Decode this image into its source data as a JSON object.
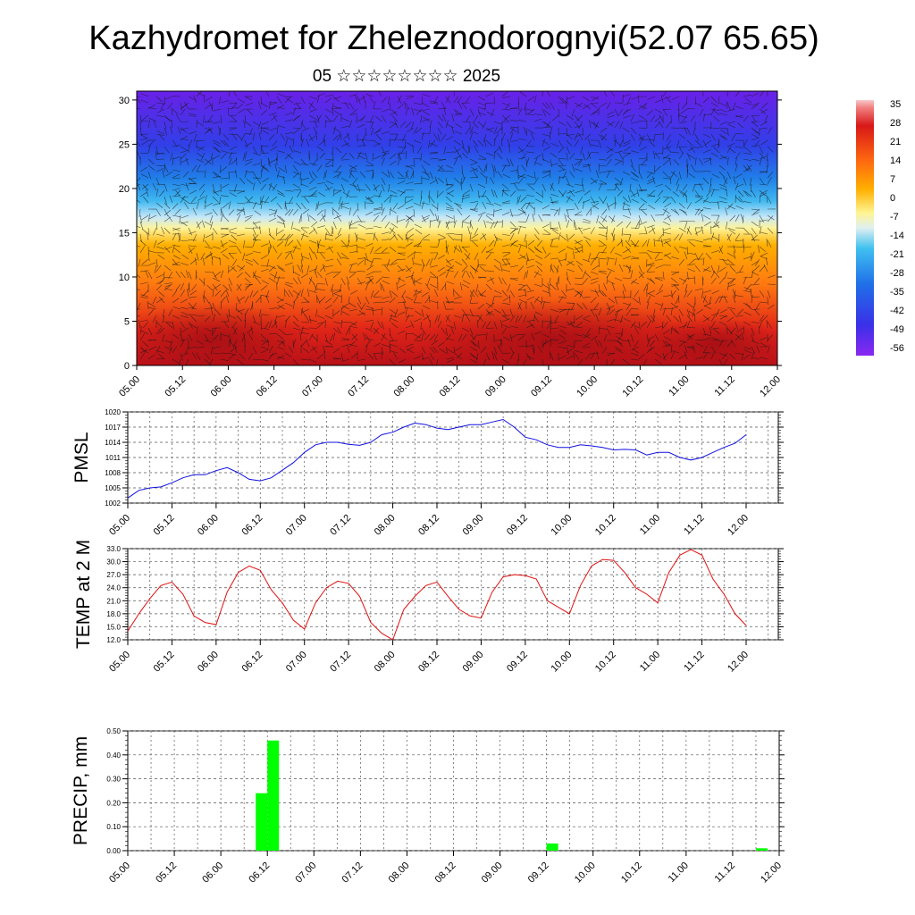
{
  "title": "Kazhydromet for Zheleznodorognyi(52.07 65.65)",
  "subtitle": "05 ☆☆☆☆☆☆☆☆ 2025",
  "colorbar": {
    "labels": [
      "35",
      "28",
      "21",
      "14",
      "7",
      "0",
      "-7",
      "-14",
      "-21",
      "-28",
      "-35",
      "-42",
      "-49",
      "-56"
    ],
    "colors": {
      "hot": "#c8161e",
      "warm": "#ff9c00",
      "neutral": "#fff8a0",
      "cool": "#28a8e8",
      "cold": "#5020e8"
    }
  },
  "chart_data": [
    {
      "type": "heatmap",
      "name": "cross-section",
      "x_tick_labels": [
        "05.00",
        "05.12",
        "06.00",
        "06.12",
        "07.00",
        "07.12",
        "08.00",
        "08.12",
        "09.00",
        "09.12",
        "10.00",
        "10.12",
        "11.00",
        "11.12",
        "12.00"
      ],
      "yticks": [
        0,
        5,
        10,
        15,
        20,
        25,
        30
      ],
      "ylim": [
        0,
        31
      ],
      "value_range": [
        -56,
        35
      ],
      "notes_visible": "temperature shading with wind barbs"
    },
    {
      "type": "line",
      "ylabel": "PMSL",
      "color": "#1010e0",
      "ylim": [
        1002,
        1020
      ],
      "yticks": [
        "1002",
        "1005",
        "1008",
        "1011",
        "1014",
        "1017",
        "1020"
      ],
      "x_tick_labels": [
        "05.00",
        "05.12",
        "06.00",
        "06.12",
        "07.00",
        "07.12",
        "08.00",
        "08.12",
        "09.00",
        "09.12",
        "10.00",
        "10.12",
        "11.00",
        "11.12",
        "12.00"
      ],
      "x_hours_step": 3,
      "values": [
        1003.0,
        1004.5,
        1005.0,
        1005.2,
        1006.0,
        1007.0,
        1007.6,
        1007.6,
        1008.4,
        1009.0,
        1008.0,
        1006.7,
        1006.4,
        1007.0,
        1008.5,
        1010.0,
        1012.0,
        1013.5,
        1014.0,
        1014.0,
        1013.6,
        1013.4,
        1014.0,
        1015.5,
        1016.0,
        1017.0,
        1017.8,
        1017.5,
        1016.8,
        1016.5,
        1017.0,
        1017.5,
        1017.5,
        1018.0,
        1018.5,
        1017.0,
        1015.0,
        1014.5,
        1013.5,
        1013.0,
        1013.0,
        1013.5,
        1013.3,
        1013.0,
        1012.5,
        1012.6,
        1012.5,
        1011.5,
        1012.0,
        1012.0,
        1011.0,
        1010.5,
        1011.0,
        1012.0,
        1013.0,
        1013.8,
        1015.5
      ]
    },
    {
      "type": "line",
      "ylabel": "TEMP at 2 M",
      "color": "#e01010",
      "ylim": [
        12,
        33
      ],
      "yticks": [
        "12.0",
        "15.0",
        "18.0",
        "21.0",
        "24.0",
        "27.0",
        "30.0",
        "33.0"
      ],
      "x_tick_labels": [
        "05.00",
        "05.12",
        "06.00",
        "06.12",
        "07.00",
        "07.12",
        "08.00",
        "08.12",
        "09.00",
        "09.12",
        "10.00",
        "10.12",
        "11.00",
        "11.12",
        "12.00"
      ],
      "x_hours_step": 3,
      "values": [
        14.0,
        18.0,
        21.5,
        24.5,
        25.3,
        22.5,
        17.5,
        16.0,
        15.5,
        23.0,
        27.5,
        29.0,
        28.0,
        23.5,
        20.5,
        16.5,
        14.5,
        20.5,
        24.0,
        25.5,
        25.0,
        22.0,
        16.0,
        13.5,
        12.0,
        19.0,
        22.0,
        24.5,
        25.3,
        22.0,
        19.0,
        17.5,
        17.0,
        23.0,
        26.5,
        27.0,
        26.8,
        26.0,
        21.0,
        19.5,
        18.0,
        24.5,
        29.0,
        30.5,
        30.3,
        27.5,
        24.0,
        22.5,
        20.5,
        27.5,
        31.5,
        32.8,
        31.5,
        26.0,
        22.5,
        18.0,
        15.3
      ]
    },
    {
      "type": "bar",
      "ylabel": "PRECIP, mm",
      "color": "#00ff00",
      "ylim": [
        0,
        0.5
      ],
      "yticks": [
        "0.00",
        "0.10",
        "0.20",
        "0.30",
        "0.40",
        "0.50"
      ],
      "x_tick_labels": [
        "05.00",
        "05.12",
        "06.00",
        "06.12",
        "07.00",
        "07.12",
        "08.00",
        "08.12",
        "09.00",
        "09.12",
        "10.00",
        "10.12",
        "11.00",
        "11.12",
        "12.00"
      ],
      "x_hours_step": 3,
      "bars": [
        {
          "hour": 33,
          "value": 0.24
        },
        {
          "hour": 36,
          "value": 0.46
        },
        {
          "hour": 108,
          "value": 0.03
        },
        {
          "hour": 162,
          "value": 0.01
        }
      ]
    }
  ]
}
